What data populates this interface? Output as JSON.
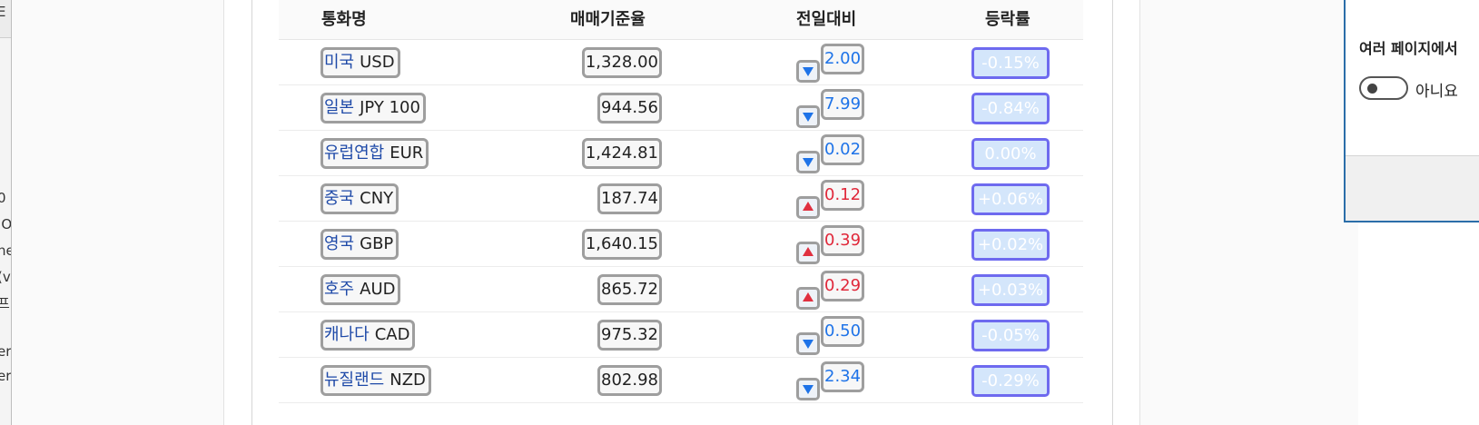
{
  "left_panel": {
    "fragments": [
      "E",
      "0",
      "IO",
      "ne",
      "(v",
      "프",
      "er",
      "er"
    ]
  },
  "table": {
    "headers": {
      "name": "통화명",
      "rate": "매매기준율",
      "diff": "전일대비",
      "pct": "등락률"
    },
    "rows": [
      {
        "name_kr": "미국",
        "code": "USD",
        "rate": "1,328.00",
        "direction": "down",
        "direction_icon": "down-arrow-icon",
        "diff": "2.00",
        "pct": "-0.15%"
      },
      {
        "name_kr": "일본",
        "code": "JPY 100",
        "rate": "944.56",
        "direction": "down",
        "direction_icon": "down-arrow-icon",
        "diff": "7.99",
        "pct": "-0.84%"
      },
      {
        "name_kr": "유럽연합",
        "code": "EUR",
        "rate": "1,424.81",
        "direction": "down",
        "direction_icon": "down-arrow-icon",
        "diff": "0.02",
        "pct": "0.00%"
      },
      {
        "name_kr": "중국",
        "code": "CNY",
        "rate": "187.74",
        "direction": "up",
        "direction_icon": "up-arrow-icon",
        "diff": "0.12",
        "pct": "+0.06%"
      },
      {
        "name_kr": "영국",
        "code": "GBP",
        "rate": "1,640.15",
        "direction": "up",
        "direction_icon": "up-arrow-icon",
        "diff": "0.39",
        "pct": "+0.02%"
      },
      {
        "name_kr": "호주",
        "code": "AUD",
        "rate": "865.72",
        "direction": "up",
        "direction_icon": "up-arrow-icon",
        "diff": "0.29",
        "pct": "+0.03%"
      },
      {
        "name_kr": "캐나다",
        "code": "CAD",
        "rate": "975.32",
        "direction": "down",
        "direction_icon": "down-arrow-icon",
        "diff": "0.50",
        "pct": "-0.05%"
      },
      {
        "name_kr": "뉴질랜드",
        "code": "NZD",
        "rate": "802.98",
        "direction": "down",
        "direction_icon": "down-arrow-icon",
        "diff": "2.34",
        "pct": "-0.29%"
      }
    ]
  },
  "dialog": {
    "question": "여러 페이지에서",
    "toggle_label": "아니요",
    "toggle_on": false
  },
  "colors": {
    "name_link": "#1f4aa8",
    "down": "#1e73e8",
    "up": "#e0283a",
    "pct_border": "#6e6aef",
    "pct_fill": "#d4e6fb",
    "dialog_border": "#2b6ea9"
  }
}
